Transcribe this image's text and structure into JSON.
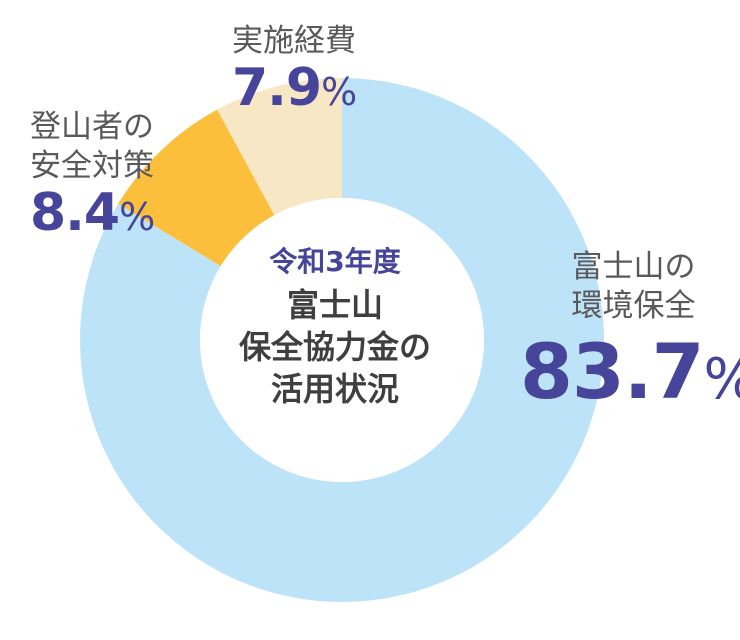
{
  "chart_data": {
    "type": "pie",
    "donut": true,
    "center_subtitle": "令和3年度",
    "center_title": "富士山\n保全協力金の\n活用状況",
    "slices": [
      {
        "label": "富士山の\n環境保全",
        "value": 83.7,
        "value_text": "83.7",
        "unit": "%",
        "color": "#bde3f8"
      },
      {
        "label": "登山者の\n安全対策",
        "value": 8.4,
        "value_text": "8.4",
        "unit": "%",
        "color": "#fbbf3c"
      },
      {
        "label": "実施経費",
        "value": 7.9,
        "value_text": "7.9",
        "unit": "%",
        "color": "#f8e7c4"
      }
    ],
    "legend": "none"
  }
}
